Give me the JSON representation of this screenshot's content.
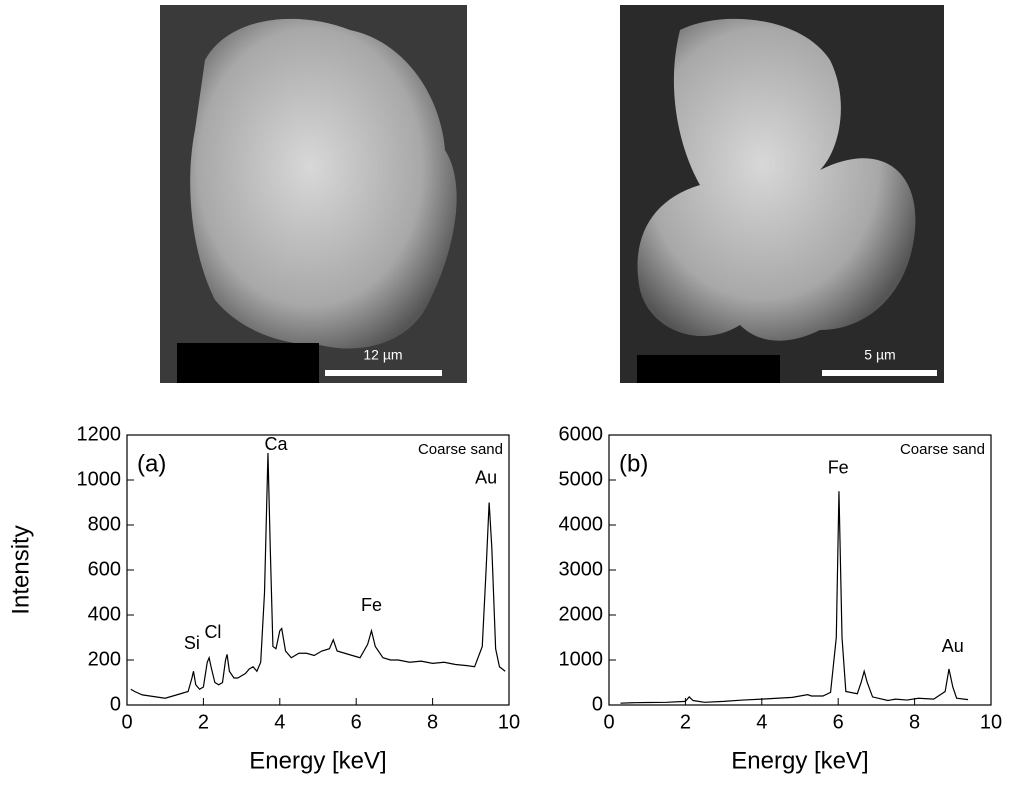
{
  "images": [
    {
      "scale_label": "12 µm"
    },
    {
      "scale_label": "5 µm"
    }
  ],
  "chart_data": [
    {
      "type": "line",
      "panel_label": "(a)",
      "note": "Coarse sand",
      "ylabel": "Intensity",
      "xlabel": "Energy [keV]",
      "peaks": [
        "Si",
        "Cl",
        "Ca",
        "Fe",
        "Au"
      ],
      "xlim": [
        0,
        10
      ],
      "xticks": [
        0,
        2,
        4,
        6,
        8,
        10
      ],
      "ylim": [
        0,
        1200
      ],
      "yticks": [
        0,
        200,
        400,
        600,
        800,
        1000,
        1200
      ],
      "x": [
        0.1,
        0.2,
        0.4,
        0.6,
        0.8,
        1.0,
        1.2,
        1.4,
        1.6,
        1.7,
        1.74,
        1.8,
        1.9,
        2.0,
        2.1,
        2.15,
        2.2,
        2.3,
        2.4,
        2.5,
        2.58,
        2.62,
        2.68,
        2.8,
        2.9,
        3.0,
        3.1,
        3.2,
        3.3,
        3.4,
        3.5,
        3.6,
        3.69,
        3.75,
        3.82,
        3.9,
        4.0,
        4.05,
        4.15,
        4.3,
        4.5,
        4.7,
        4.9,
        5.1,
        5.3,
        5.4,
        5.5,
        5.7,
        5.9,
        6.1,
        6.3,
        6.4,
        6.5,
        6.7,
        6.9,
        7.1,
        7.4,
        7.7,
        8.0,
        8.3,
        8.6,
        8.9,
        9.1,
        9.3,
        9.4,
        9.48,
        9.55,
        9.65,
        9.75,
        9.9
      ],
      "series": [
        {
          "color": "#000000",
          "values": [
            70,
            60,
            45,
            40,
            35,
            30,
            40,
            50,
            60,
            120,
            150,
            90,
            70,
            80,
            190,
            210,
            170,
            100,
            90,
            100,
            200,
            225,
            150,
            120,
            120,
            130,
            140,
            160,
            170,
            150,
            190,
            500,
            1120,
            700,
            260,
            250,
            330,
            340,
            240,
            210,
            230,
            230,
            220,
            240,
            250,
            290,
            240,
            230,
            220,
            210,
            270,
            330,
            260,
            210,
            200,
            200,
            190,
            195,
            185,
            190,
            180,
            175,
            170,
            260,
            600,
            900,
            700,
            250,
            170,
            150
          ]
        }
      ]
    },
    {
      "type": "line",
      "panel_label": "(b)",
      "note": "Coarse sand",
      "xlabel": "Energy [keV]",
      "peaks": [
        "Fe",
        "Au"
      ],
      "xlim": [
        0,
        10
      ],
      "xticks": [
        0,
        2,
        4,
        6,
        8,
        10
      ],
      "ylim": [
        0,
        6000
      ],
      "yticks": [
        0,
        1000,
        2000,
        3000,
        4000,
        5000,
        6000
      ],
      "x": [
        0.3,
        0.6,
        1.0,
        1.5,
        2.0,
        2.1,
        2.2,
        2.5,
        3.0,
        3.5,
        4.0,
        4.4,
        4.8,
        5.2,
        5.3,
        5.6,
        5.8,
        5.95,
        6.02,
        6.1,
        6.2,
        6.5,
        6.6,
        6.68,
        6.76,
        6.9,
        7.3,
        7.5,
        7.8,
        8.1,
        8.5,
        8.8,
        8.9,
        9.0,
        9.1,
        9.4
      ],
      "series": [
        {
          "color": "#000000",
          "values": [
            40,
            50,
            55,
            60,
            80,
            180,
            100,
            60,
            80,
            110,
            130,
            150,
            170,
            230,
            200,
            200,
            280,
            1500,
            4750,
            1500,
            300,
            250,
            500,
            750,
            500,
            180,
            100,
            130,
            110,
            150,
            130,
            300,
            800,
            400,
            150,
            120
          ]
        }
      ]
    }
  ]
}
